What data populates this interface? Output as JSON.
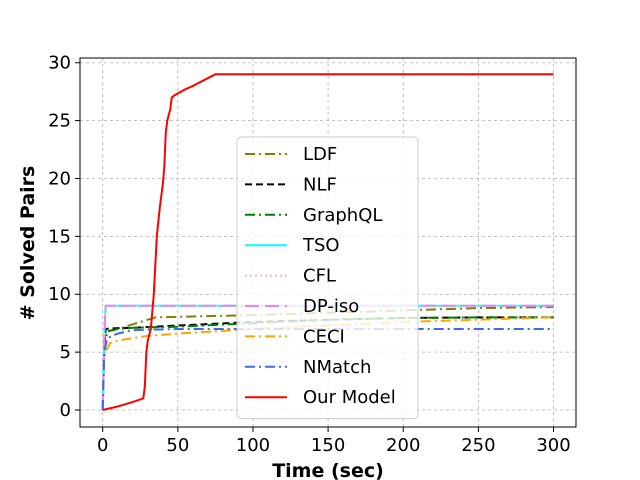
{
  "chart_data": {
    "type": "line",
    "title": "",
    "xlabel": "Time (sec)",
    "ylabel": "# Solved Pairs",
    "xlim": [
      -15,
      315
    ],
    "ylim": [
      -1.5,
      30.5
    ],
    "xticks": [
      0,
      50,
      100,
      150,
      200,
      250,
      300
    ],
    "yticks": [
      0,
      5,
      10,
      15,
      20,
      25,
      30
    ],
    "grid": true,
    "legend_position": "center",
    "series": [
      {
        "name": "LDF",
        "color": "#808000",
        "dash": "10,4,2,4",
        "x": [
          0,
          1,
          3,
          10,
          20,
          30,
          35,
          50,
          100,
          150,
          200,
          250,
          300
        ],
        "y": [
          0,
          5.5,
          6.8,
          7.0,
          7.4,
          7.8,
          8.0,
          8.05,
          8.2,
          8.4,
          8.6,
          8.8,
          8.9
        ]
      },
      {
        "name": "NLF",
        "color": "#000000",
        "dash": "7,4",
        "x": [
          0,
          1,
          2,
          5,
          20,
          50,
          100,
          150,
          200,
          250,
          300
        ],
        "y": [
          0,
          5.5,
          7.0,
          7.05,
          7.1,
          7.3,
          7.6,
          7.8,
          7.95,
          8.0,
          8.0
        ]
      },
      {
        "name": "GraphQL",
        "color": "#008000",
        "dash": "10,4,2,4",
        "x": [
          0,
          1,
          3,
          10,
          20,
          50,
          100,
          150,
          200,
          250,
          300
        ],
        "y": [
          0,
          5.5,
          6.8,
          7.0,
          7.1,
          7.2,
          7.5,
          7.8,
          7.95,
          8.0,
          8.0
        ]
      },
      {
        "name": "TSO",
        "color": "#00FFFF",
        "dash": "",
        "x": [
          0,
          0.5,
          1,
          1.5,
          2,
          300
        ],
        "y": [
          0,
          3.0,
          6.0,
          8.0,
          9.0,
          9.0
        ]
      },
      {
        "name": "CFL",
        "color": "#FFB6C1",
        "dash": "2,3",
        "x": [
          0,
          0.5,
          1,
          2,
          300
        ],
        "y": [
          0,
          4.0,
          7.0,
          9.0,
          9.0
        ]
      },
      {
        "name": "DP-iso",
        "color": "#EE82EE",
        "dash": "14,6",
        "x": [
          0,
          1,
          2,
          300
        ],
        "y": [
          0,
          6.0,
          9.0,
          9.0
        ]
      },
      {
        "name": "CECI",
        "color": "#FFA500",
        "dash": "10,4,2,4",
        "x": [
          0,
          1,
          3,
          5,
          10,
          20,
          30,
          50,
          75,
          100,
          150,
          200,
          250,
          300
        ],
        "y": [
          0,
          4.5,
          5.3,
          5.8,
          6.0,
          6.2,
          6.4,
          6.6,
          6.8,
          7.0,
          7.3,
          7.6,
          7.8,
          8.0
        ]
      },
      {
        "name": "NMatch",
        "color": "#4169E1",
        "dash": "10,4,2,4",
        "x": [
          0,
          1,
          3,
          10,
          20,
          50,
          100,
          150,
          200,
          250,
          300
        ],
        "y": [
          0,
          5.0,
          6.2,
          6.6,
          6.9,
          7.0,
          7.0,
          7.0,
          7.0,
          7.0,
          7.0
        ]
      },
      {
        "name": "Our Model",
        "color": "#FF0000",
        "dash": "",
        "x": [
          0,
          10,
          20,
          27,
          28,
          29,
          30,
          32,
          34,
          36,
          38,
          40,
          41,
          42,
          43,
          44,
          45,
          46,
          48,
          55,
          60,
          75,
          100,
          150,
          200,
          250,
          300
        ],
        "y": [
          0,
          0.3,
          0.7,
          1.0,
          2.0,
          5.0,
          6.0,
          7.0,
          10.0,
          15.0,
          17.5,
          19.5,
          21.0,
          24.0,
          25.0,
          25.5,
          26.0,
          27.0,
          27.2,
          27.7,
          28.0,
          29.0,
          29.0,
          29.0,
          29.0,
          29.0,
          29.0
        ]
      }
    ]
  }
}
